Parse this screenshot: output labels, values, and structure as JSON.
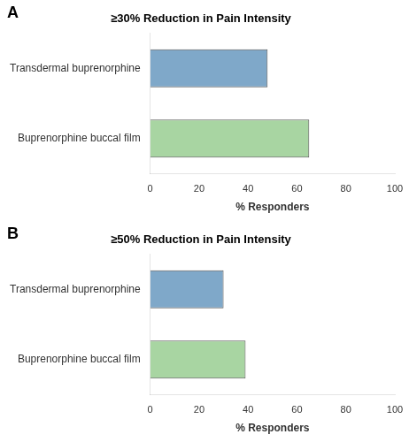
{
  "chart_data": [
    {
      "type": "bar",
      "orientation": "horizontal",
      "annotation": "A",
      "title": "≥30% Reduction in Pain Intensity",
      "categories": [
        "Transdermal buprenorphine",
        "Buprenorphine buccal film"
      ],
      "values": [
        48,
        65
      ],
      "colors": [
        "#7fa8c9",
        "#a8d5a2"
      ],
      "xlim": [
        0,
        100
      ],
      "xticks": [
        0,
        20,
        40,
        60,
        80,
        100
      ],
      "xlabel": "% Responders",
      "grid": false
    },
    {
      "type": "bar",
      "orientation": "horizontal",
      "annotation": "B",
      "title": "≥50% Reduction in Pain Intensity",
      "categories": [
        "Transdermal buprenorphine",
        "Buprenorphine buccal film"
      ],
      "values": [
        30,
        39
      ],
      "colors": [
        "#7fa8c9",
        "#a8d5a2"
      ],
      "xlim": [
        0,
        100
      ],
      "xticks": [
        0,
        20,
        40,
        60,
        80,
        100
      ],
      "xlabel": "% Responders",
      "grid": false
    }
  ]
}
